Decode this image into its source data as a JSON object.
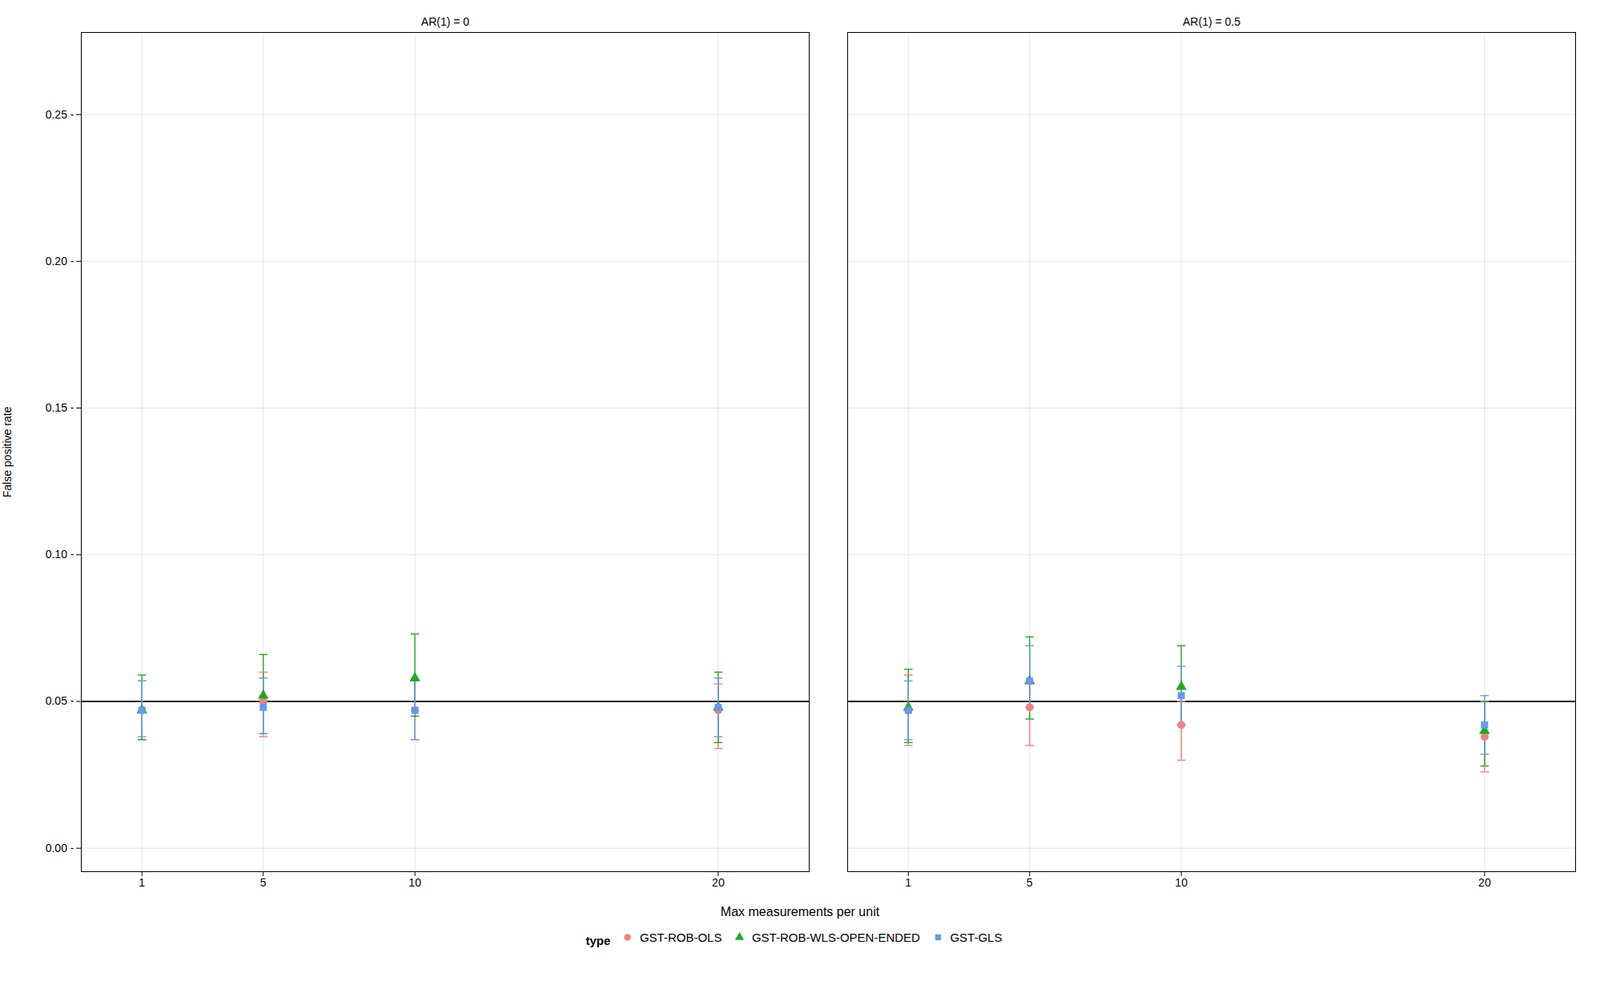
{
  "chart_data": [
    {
      "type": "scatter",
      "title": "AR(1) = 0",
      "x_label": "Max measurements per unit",
      "y_label": "False positive rate",
      "x": [
        1,
        5,
        10,
        20
      ],
      "series": [
        {
          "name": "GST-ROB-OLS",
          "color": "#F08080",
          "marker": "circle",
          "values": [
            0.047,
            0.05,
            0.047,
            0.047
          ],
          "yerr_lo": [
            0.01,
            0.012,
            0.01,
            0.013
          ],
          "yerr_hi": [
            0.01,
            0.01,
            0.01,
            0.009
          ]
        },
        {
          "name": "GST-ROB-WLS-OPEN-ENDED",
          "color": "#22AA22",
          "marker": "triangle",
          "values": [
            0.047,
            0.052,
            0.058,
            0.048
          ],
          "yerr_lo": [
            0.01,
            0.013,
            0.013,
            0.012
          ],
          "yerr_hi": [
            0.012,
            0.014,
            0.015,
            0.012
          ]
        },
        {
          "name": "GST-GLS",
          "color": "#6699EE",
          "marker": "square",
          "values": [
            0.047,
            0.048,
            0.047,
            0.048
          ],
          "yerr_lo": [
            0.009,
            0.009,
            0.01,
            0.01
          ],
          "yerr_hi": [
            0.01,
            0.01,
            0.01,
            0.01
          ]
        }
      ],
      "hline": 0.05,
      "xlim": [
        -1,
        23
      ],
      "xticks": [
        1,
        5,
        10,
        20
      ],
      "ylim": [
        -0.008,
        0.278
      ],
      "yticks": [
        {
          "value": 0.0,
          "label": "0.00 -"
        },
        {
          "value": 0.05,
          "label": "0.05 -"
        },
        {
          "value": 0.1,
          "label": "0.10 -"
        },
        {
          "value": 0.15,
          "label": "0.15 -"
        },
        {
          "value": 0.2,
          "label": "0.20 -"
        },
        {
          "value": 0.25,
          "label": "0.25 -"
        }
      ],
      "grid": true,
      "legend": "bottom",
      "legend_title": "type"
    },
    {
      "type": "scatter",
      "title": "AR(1) = 0.5",
      "x": [
        1,
        5,
        10,
        20
      ],
      "series": [
        {
          "name": "GST-ROB-OLS",
          "color": "#F08080",
          "marker": "circle",
          "values": [
            0.047,
            0.048,
            0.042,
            0.038
          ],
          "yerr_lo": [
            0.012,
            0.013,
            0.012,
            0.012
          ],
          "yerr_hi": [
            0.012,
            0.008,
            0.008,
            0.012
          ]
        },
        {
          "name": "GST-ROB-WLS-OPEN-ENDED",
          "color": "#22AA22",
          "marker": "triangle",
          "values": [
            0.048,
            0.057,
            0.055,
            0.04
          ],
          "yerr_lo": [
            0.012,
            0.013,
            0.013,
            0.012
          ],
          "yerr_hi": [
            0.013,
            0.015,
            0.014,
            0.01
          ]
        },
        {
          "name": "GST-GLS",
          "color": "#6699EE",
          "marker": "square",
          "values": [
            0.047,
            0.057,
            0.052,
            0.042
          ],
          "yerr_lo": [
            0.01,
            0.009,
            0.01,
            0.01
          ],
          "yerr_hi": [
            0.01,
            0.012,
            0.01,
            0.01
          ]
        }
      ],
      "hline": 0.05,
      "xlim": [
        -1,
        23
      ],
      "xticks": [
        1,
        5,
        10,
        20
      ],
      "ylim": [
        -0.008,
        0.278
      ],
      "yticks": [
        {
          "value": 0.0,
          "label": "0.00 -"
        },
        {
          "value": 0.05,
          "label": "0.05 -"
        },
        {
          "value": 0.1,
          "label": "0.10 -"
        },
        {
          "value": 0.15,
          "label": "0.15 -"
        },
        {
          "value": 0.2,
          "label": "0.20 -"
        },
        {
          "value": 0.25,
          "label": "0.25 -"
        }
      ],
      "grid": true
    }
  ]
}
